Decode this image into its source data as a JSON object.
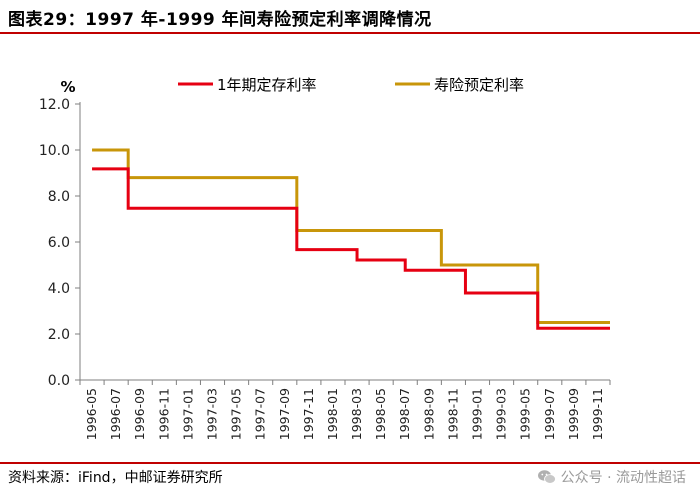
{
  "figure": {
    "title": "图表29：1997 年-1999 年间寿险预定利率调降情况",
    "source": "资料来源：iFind，中邮证券研究所",
    "watermark": "公众号 · 流动性超话",
    "watermark_icon": "wechat-icon"
  },
  "colors": {
    "rule": "#c00000",
    "deposit": "#e60012",
    "insurance": "#c8960a",
    "axis": "#7f7f7f"
  },
  "chart_data": {
    "type": "line",
    "step": true,
    "unit_label": "%",
    "title": "",
    "xlabel": "",
    "ylabel": "",
    "ylim": [
      0,
      12
    ],
    "yticks": [
      "0.0",
      "2.0",
      "4.0",
      "6.0",
      "8.0",
      "10.0",
      "12.0"
    ],
    "grid": false,
    "legend_position": "top",
    "categories": [
      "1996-05",
      "1996-07",
      "1996-09",
      "1996-11",
      "1997-01",
      "1997-03",
      "1997-05",
      "1997-07",
      "1997-09",
      "1997-11",
      "1998-01",
      "1998-03",
      "1998-05",
      "1998-07",
      "1998-09",
      "1998-11",
      "1999-01",
      "1999-03",
      "1999-05",
      "1999-07",
      "1999-09",
      "1999-11"
    ],
    "series": [
      {
        "name": "1年期定存利率",
        "color": "#e60012",
        "points": [
          {
            "x": "1996-05",
            "y": 9.18
          },
          {
            "x": "1996-08",
            "y": 7.47
          },
          {
            "x": "1997-10",
            "y": 5.67
          },
          {
            "x": "1998-03",
            "y": 5.22
          },
          {
            "x": "1998-07",
            "y": 4.77
          },
          {
            "x": "1998-12",
            "y": 3.78
          },
          {
            "x": "1999-06",
            "y": 2.25
          },
          {
            "x": "1999-12",
            "y": 2.25
          }
        ]
      },
      {
        "name": "寿险预定利率",
        "color": "#c8960a",
        "points": [
          {
            "x": "1996-05",
            "y": 10.0
          },
          {
            "x": "1996-08",
            "y": 8.8
          },
          {
            "x": "1997-10",
            "y": 6.5
          },
          {
            "x": "1998-10",
            "y": 5.0
          },
          {
            "x": "1999-06",
            "y": 2.5
          },
          {
            "x": "1999-12",
            "y": 2.5
          }
        ]
      }
    ]
  }
}
